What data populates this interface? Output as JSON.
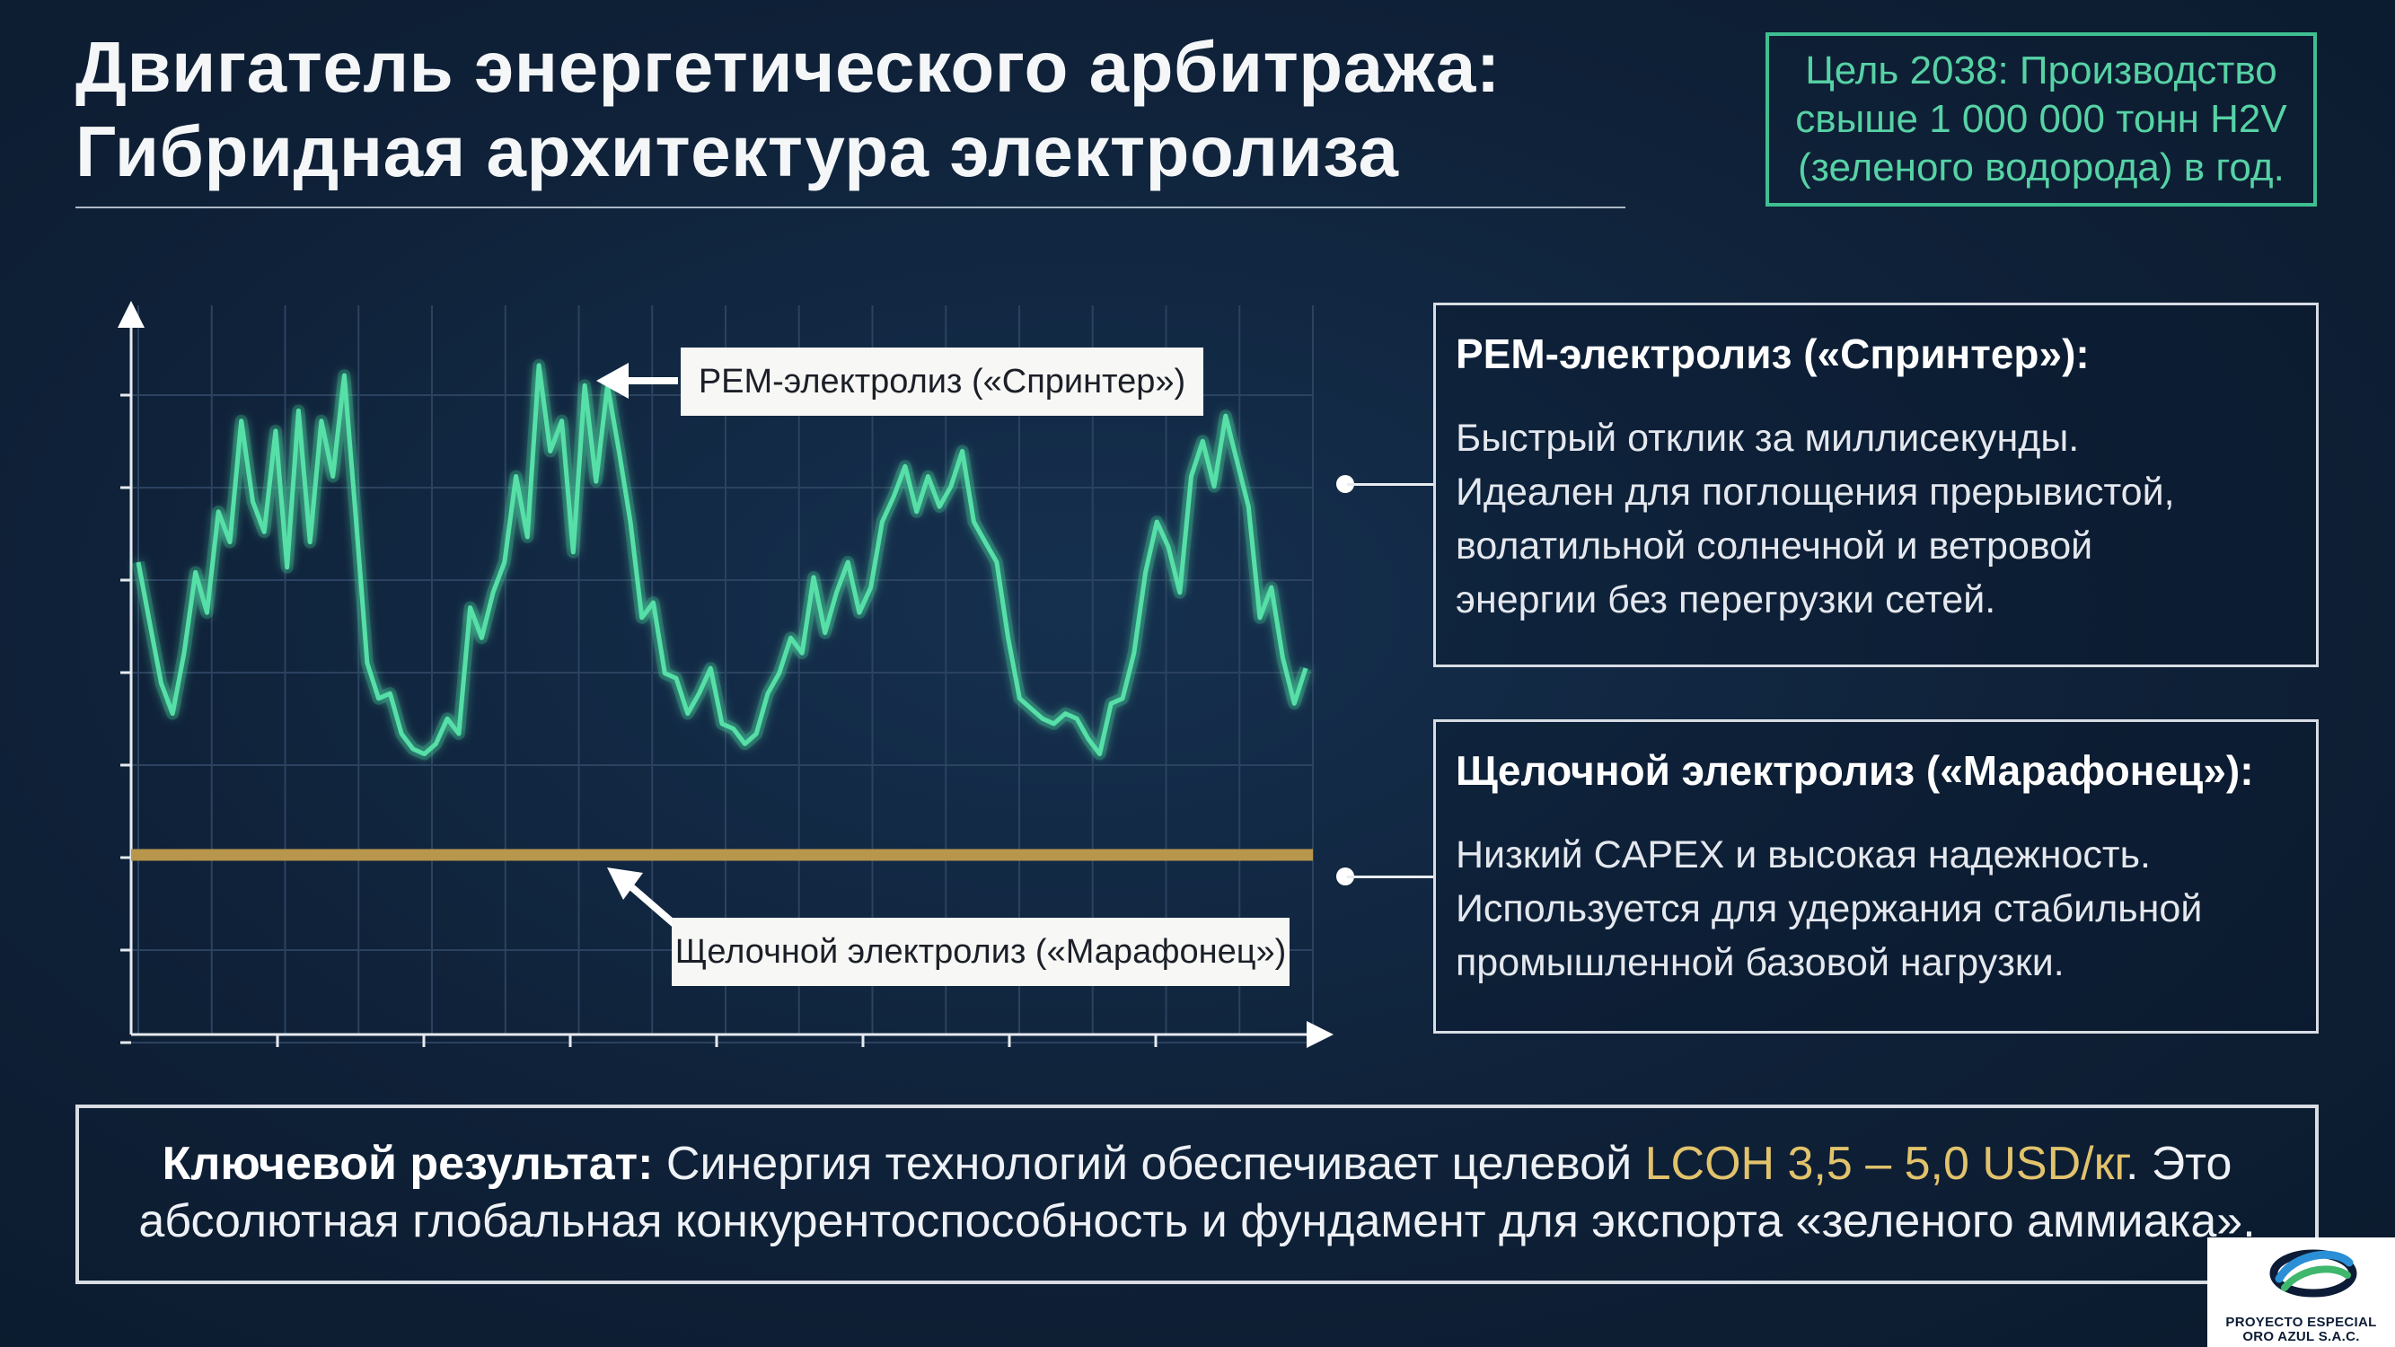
{
  "title": {
    "line1": "Двигатель энергетического арбитража:",
    "line2": "Гибридная архитектура электролиза"
  },
  "goal": {
    "line1": "Цель 2038: Производство",
    "line2": "свыше 1 000 000 тонн H2V",
    "line3": "(зеленого водорода) в год."
  },
  "chart_data": {
    "type": "line",
    "series": [
      {
        "name": "PEM-электролиз («Спринтер»)",
        "color": "#57e0a8",
        "values": [
          0.58,
          0.46,
          0.34,
          0.28,
          0.4,
          0.56,
          0.48,
          0.68,
          0.62,
          0.86,
          0.7,
          0.64,
          0.84,
          0.57,
          0.88,
          0.62,
          0.86,
          0.75,
          0.95,
          0.67,
          0.38,
          0.31,
          0.32,
          0.24,
          0.21,
          0.2,
          0.22,
          0.27,
          0.24,
          0.49,
          0.43,
          0.52,
          0.58,
          0.75,
          0.63,
          0.97,
          0.8,
          0.86,
          0.6,
          0.93,
          0.74,
          0.93,
          0.8,
          0.66,
          0.47,
          0.5,
          0.36,
          0.35,
          0.28,
          0.32,
          0.37,
          0.26,
          0.25,
          0.22,
          0.24,
          0.32,
          0.36,
          0.43,
          0.4,
          0.55,
          0.44,
          0.52,
          0.58,
          0.48,
          0.53,
          0.66,
          0.71,
          0.77,
          0.68,
          0.75,
          0.69,
          0.73,
          0.8,
          0.66,
          0.62,
          0.58,
          0.43,
          0.31,
          0.29,
          0.27,
          0.26,
          0.28,
          0.27,
          0.23,
          0.2,
          0.3,
          0.31,
          0.4,
          0.56,
          0.66,
          0.61,
          0.52,
          0.75,
          0.82,
          0.73,
          0.87,
          0.78,
          0.69,
          0.47,
          0.53,
          0.39,
          0.3,
          0.37
        ]
      },
      {
        "name": "Щелочной электролиз («Марафонец»)",
        "color": "#b8964c",
        "values": [
          0.0
        ]
      }
    ],
    "labels": {
      "pem": "PEM-электролиз («Спринтер»)",
      "alk": "Щелочной электролиз («Марафонец»)"
    },
    "xlabel": "",
    "ylabel": "",
    "grid": true
  },
  "pem": {
    "head": "PEM-электролиз («Спринтер»):",
    "body1": "Быстрый отклик за миллисекунды.",
    "body2": "Идеален для поглощения прерывистой,",
    "body3": "волатильной солнечной и ветровой",
    "body4": "энергии без перегрузки сетей."
  },
  "alk": {
    "head": "Щелочной электролиз («Марафонец»):",
    "body1": "Низкий CAPEX и высокая надежность.",
    "body2": "Используется для удержания стабильной",
    "body3": "промышленной базовой нагрузки."
  },
  "result": {
    "strong": "Ключевой результат:",
    "part1": " Синергия технологий обеспечивает целевой ",
    "accent": "LCOH 3,5 – 5,0 USD/кг",
    "part2": ". Это",
    "line2": "абсолютная глобальная конкурентоспособность и фундамент для экспорта «зеленого аммиака»."
  },
  "logo": {
    "line1": "PROYECTO ESPECIAL",
    "line2": "ORO AZUL S.A.C.",
    "colors": [
      "#2a8fd6",
      "#3fb86e",
      "#0d1c36"
    ]
  }
}
